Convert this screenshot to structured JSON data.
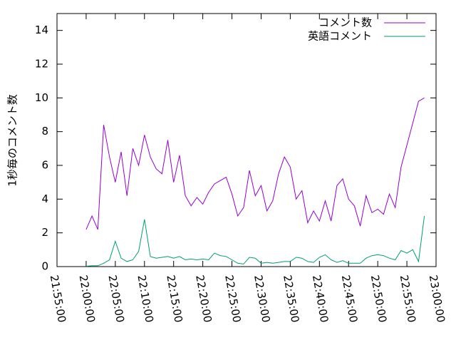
{
  "chart_data": {
    "type": "line",
    "y_label": "1秒毎のコメント数",
    "x": [
      "22:00:00",
      "22:01:00",
      "22:02:00",
      "22:03:00",
      "22:04:00",
      "22:05:00",
      "22:06:00",
      "22:07:00",
      "22:08:00",
      "22:09:00",
      "22:10:00",
      "22:11:00",
      "22:12:00",
      "22:13:00",
      "22:14:00",
      "22:15:00",
      "22:16:00",
      "22:17:00",
      "22:18:00",
      "22:19:00",
      "22:20:00",
      "22:21:00",
      "22:22:00",
      "22:23:00",
      "22:24:00",
      "22:25:00",
      "22:26:00",
      "22:27:00",
      "22:28:00",
      "22:29:00",
      "22:30:00",
      "22:31:00",
      "22:32:00",
      "22:33:00",
      "22:34:00",
      "22:35:00",
      "22:36:00",
      "22:37:00",
      "22:38:00",
      "22:39:00",
      "22:40:00",
      "22:41:00",
      "22:42:00",
      "22:43:00",
      "22:44:00",
      "22:45:00",
      "22:46:00",
      "22:47:00",
      "22:48:00",
      "22:49:00",
      "22:50:00",
      "22:51:00",
      "22:52:00",
      "22:53:00",
      "22:54:00",
      "22:55:00",
      "22:56:00",
      "22:57:00",
      "22:58:00"
    ],
    "series": [
      {
        "name": "コメント数",
        "color": "#9400d3",
        "values": [
          2.2,
          3.0,
          2.2,
          8.4,
          6.5,
          5.0,
          6.8,
          4.2,
          7.0,
          6.0,
          7.8,
          6.5,
          5.8,
          5.5,
          7.5,
          5.0,
          6.6,
          4.2,
          3.6,
          4.1,
          3.7,
          4.4,
          4.9,
          5.1,
          5.3,
          4.3,
          3.0,
          3.5,
          5.7,
          4.2,
          4.8,
          3.3,
          3.9,
          5.5,
          6.5,
          5.9,
          4.0,
          4.5,
          2.6,
          3.3,
          2.7,
          3.9,
          2.7,
          4.8,
          5.2,
          4.0,
          3.6,
          2.4,
          4.2,
          3.2,
          3.4,
          3.1,
          4.3,
          3.5,
          5.9,
          7.2,
          8.5,
          9.8,
          10.0
        ]
      },
      {
        "name": "英語コメント",
        "color": "#009e73",
        "values": [
          0.02,
          0.05,
          0.05,
          0.2,
          0.4,
          1.5,
          0.5,
          0.3,
          0.4,
          0.9,
          2.8,
          0.6,
          0.5,
          0.55,
          0.6,
          0.5,
          0.6,
          0.4,
          0.45,
          0.4,
          0.45,
          0.4,
          0.8,
          0.65,
          0.6,
          0.4,
          0.2,
          0.15,
          0.55,
          0.5,
          0.2,
          0.25,
          0.2,
          0.25,
          0.3,
          0.3,
          0.55,
          0.5,
          0.3,
          0.25,
          0.55,
          0.7,
          0.4,
          0.25,
          0.35,
          0.2,
          0.2,
          0.2,
          0.5,
          0.65,
          0.7,
          0.65,
          0.5,
          0.4,
          0.95,
          0.8,
          1.0,
          0.3,
          3.0
        ]
      }
    ],
    "xlim": [
      "21:55:00",
      "23:00:00"
    ],
    "xticks": [
      "21:55:00",
      "22:00:00",
      "22:05:00",
      "22:10:00",
      "22:15:00",
      "22:20:00",
      "22:25:00",
      "22:30:00",
      "22:35:00",
      "22:40:00",
      "22:45:00",
      "22:50:00",
      "22:55:00",
      "23:00:00"
    ],
    "ylim": [
      0,
      15
    ],
    "yticks": [
      0,
      2,
      4,
      6,
      8,
      10,
      12,
      14
    ],
    "legend": "top-right"
  }
}
